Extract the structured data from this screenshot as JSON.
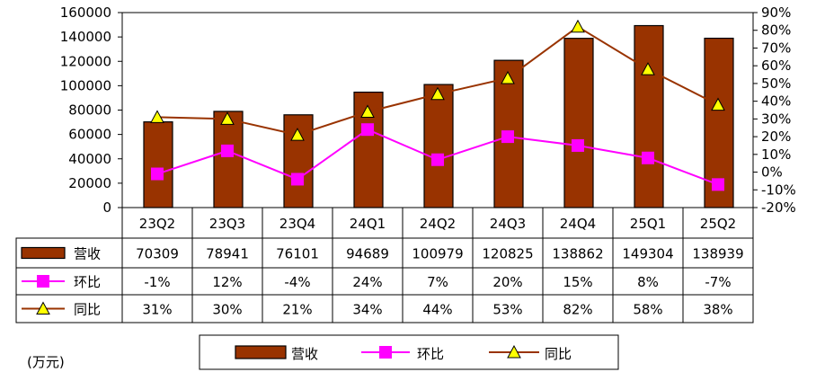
{
  "unit_label": "(万元)",
  "legend": {
    "revenue": "营收",
    "qoq": "环比",
    "yoy": "同比"
  },
  "chart_data": {
    "type": "bar",
    "categories": [
      "23Q2",
      "23Q3",
      "23Q4",
      "24Q1",
      "24Q2",
      "24Q3",
      "24Q4",
      "25Q1",
      "25Q2"
    ],
    "series": [
      {
        "name": "营收",
        "type": "bar",
        "axis": "left",
        "values": [
          70309,
          78941,
          76101,
          94689,
          100979,
          120825,
          138862,
          149304,
          138939
        ],
        "labels": [
          "70309",
          "78941",
          "76101",
          "94689",
          "100979",
          "120825",
          "138862",
          "149304",
          "138939"
        ]
      },
      {
        "name": "环比",
        "type": "line",
        "axis": "right",
        "values": [
          -1,
          12,
          -4,
          24,
          7,
          20,
          15,
          8,
          -7
        ],
        "labels": [
          "-1%",
          "12%",
          "-4%",
          "24%",
          "7%",
          "20%",
          "15%",
          "8%",
          "-7%"
        ]
      },
      {
        "name": "同比",
        "type": "line",
        "axis": "right",
        "values": [
          31,
          30,
          21,
          34,
          44,
          53,
          82,
          58,
          38
        ],
        "labels": [
          "31%",
          "30%",
          "21%",
          "34%",
          "44%",
          "53%",
          "82%",
          "58%",
          "38%"
        ]
      }
    ],
    "left_axis": {
      "ylim": [
        0,
        160000
      ],
      "ticks": [
        "0",
        "20000",
        "40000",
        "60000",
        "80000",
        "100000",
        "120000",
        "140000",
        "160000"
      ]
    },
    "right_axis": {
      "ylim": [
        -20,
        90
      ],
      "ticks": [
        "-20%",
        "-10%",
        "0%",
        "10%",
        "20%",
        "30%",
        "40%",
        "50%",
        "60%",
        "70%",
        "80%",
        "90%"
      ]
    },
    "grid": false,
    "legend_position": "bottom",
    "colors": {
      "bar_fill": "#993300",
      "qoq": "#ff00ff",
      "yoy_line": "#993300",
      "yoy_marker": "#ffff00"
    }
  }
}
